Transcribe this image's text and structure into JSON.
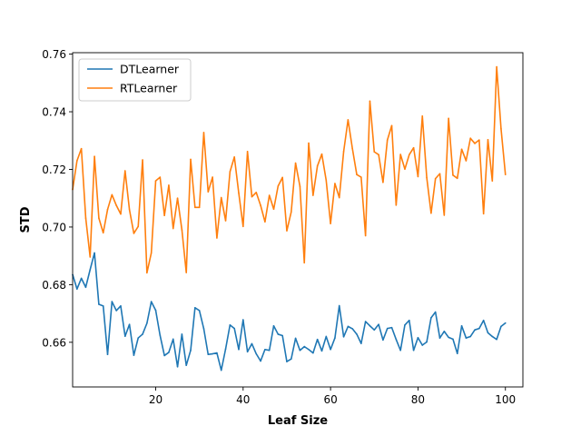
{
  "chart_data": {
    "type": "line",
    "title": "",
    "xlabel": "Leaf Size",
    "ylabel": "STD",
    "xlim": [
      1,
      104
    ],
    "ylim": [
      0.6445,
      0.7605
    ],
    "xticks": [
      20,
      40,
      60,
      80,
      100
    ],
    "xtick_labels": [
      "20",
      "40",
      "60",
      "80",
      "100"
    ],
    "yticks": [
      0.66,
      0.68,
      0.7,
      0.72,
      0.74,
      0.76
    ],
    "ytick_labels": [
      "0.66",
      "0.68",
      "0.70",
      "0.72",
      "0.74",
      "0.76"
    ],
    "grid": false,
    "legend_position": "upper-left",
    "x": [
      1,
      2,
      3,
      4,
      5,
      6,
      7,
      8,
      9,
      10,
      11,
      12,
      13,
      14,
      15,
      16,
      17,
      18,
      19,
      20,
      21,
      22,
      23,
      24,
      25,
      26,
      27,
      28,
      29,
      30,
      31,
      32,
      33,
      34,
      35,
      36,
      37,
      38,
      39,
      40,
      41,
      42,
      43,
      44,
      45,
      46,
      47,
      48,
      49,
      50,
      51,
      52,
      53,
      54,
      55,
      56,
      57,
      58,
      59,
      60,
      61,
      62,
      63,
      64,
      65,
      66,
      67,
      68,
      69,
      70,
      71,
      72,
      73,
      74,
      75,
      76,
      77,
      78,
      79,
      80,
      81,
      82,
      83,
      84,
      85,
      86,
      87,
      88,
      89,
      90,
      91,
      92,
      93,
      94,
      95,
      96,
      97,
      98,
      99,
      100
    ],
    "series": [
      {
        "name": "DTLearner",
        "color": "#1f77b4",
        "values": [
          0.6835,
          0.6785,
          0.6822,
          0.6791,
          0.6852,
          0.691,
          0.6732,
          0.6726,
          0.6558,
          0.6741,
          0.671,
          0.6726,
          0.6621,
          0.6662,
          0.6555,
          0.6615,
          0.6628,
          0.6666,
          0.6741,
          0.6711,
          0.6624,
          0.6554,
          0.6565,
          0.6611,
          0.6515,
          0.6628,
          0.652,
          0.6572,
          0.672,
          0.671,
          0.6647,
          0.6558,
          0.656,
          0.6563,
          0.6503,
          0.6577,
          0.666,
          0.6648,
          0.6575,
          0.6678,
          0.6567,
          0.6595,
          0.656,
          0.6535,
          0.6575,
          0.6572,
          0.6657,
          0.6628,
          0.6623,
          0.6533,
          0.6542,
          0.6614,
          0.6572,
          0.6585,
          0.6575,
          0.6563,
          0.661,
          0.657,
          0.662,
          0.6575,
          0.6615,
          0.6727,
          0.6619,
          0.6655,
          0.6647,
          0.6628,
          0.6596,
          0.6672,
          0.6657,
          0.6643,
          0.6662,
          0.6608,
          0.6648,
          0.6651,
          0.661,
          0.6572,
          0.666,
          0.6676,
          0.6572,
          0.6616,
          0.659,
          0.6601,
          0.6685,
          0.6705,
          0.6615,
          0.6638,
          0.6617,
          0.6611,
          0.6561,
          0.6657,
          0.6615,
          0.662,
          0.6643,
          0.6648,
          0.6676,
          0.6633,
          0.662,
          0.661,
          0.6655,
          0.6667
        ]
      },
      {
        "name": "RTLearner",
        "color": "#ff7f0e",
        "values": [
          0.713,
          0.723,
          0.7272,
          0.7031,
          0.6896,
          0.7245,
          0.7031,
          0.698,
          0.7061,
          0.7112,
          0.7075,
          0.7045,
          0.7195,
          0.706,
          0.6978,
          0.7002,
          0.7233,
          0.6841,
          0.691,
          0.716,
          0.7173,
          0.704,
          0.7145,
          0.6995,
          0.71,
          0.699,
          0.6842,
          0.7235,
          0.7068,
          0.7068,
          0.7328,
          0.7122,
          0.7173,
          0.6962,
          0.7102,
          0.7022,
          0.7192,
          0.7243,
          0.7118,
          0.7002,
          0.7262,
          0.7105,
          0.712,
          0.7075,
          0.7018,
          0.711,
          0.7062,
          0.7142,
          0.7172,
          0.6987,
          0.7052,
          0.7222,
          0.7141,
          0.6876,
          0.7291,
          0.711,
          0.7212,
          0.7253,
          0.7162,
          0.7012,
          0.7151,
          0.7102,
          0.7262,
          0.7372,
          0.7272,
          0.7182,
          0.7173,
          0.697,
          0.7437,
          0.7261,
          0.7251,
          0.7155,
          0.7302,
          0.7352,
          0.7076,
          0.7252,
          0.7201,
          0.7251,
          0.7275,
          0.7175,
          0.7385,
          0.7172,
          0.7048,
          0.7168,
          0.7185,
          0.7041,
          0.7377,
          0.718,
          0.7169,
          0.727,
          0.723,
          0.7308,
          0.729,
          0.7302,
          0.7046,
          0.7303,
          0.716,
          0.7556,
          0.7341,
          0.7182
        ]
      }
    ]
  }
}
